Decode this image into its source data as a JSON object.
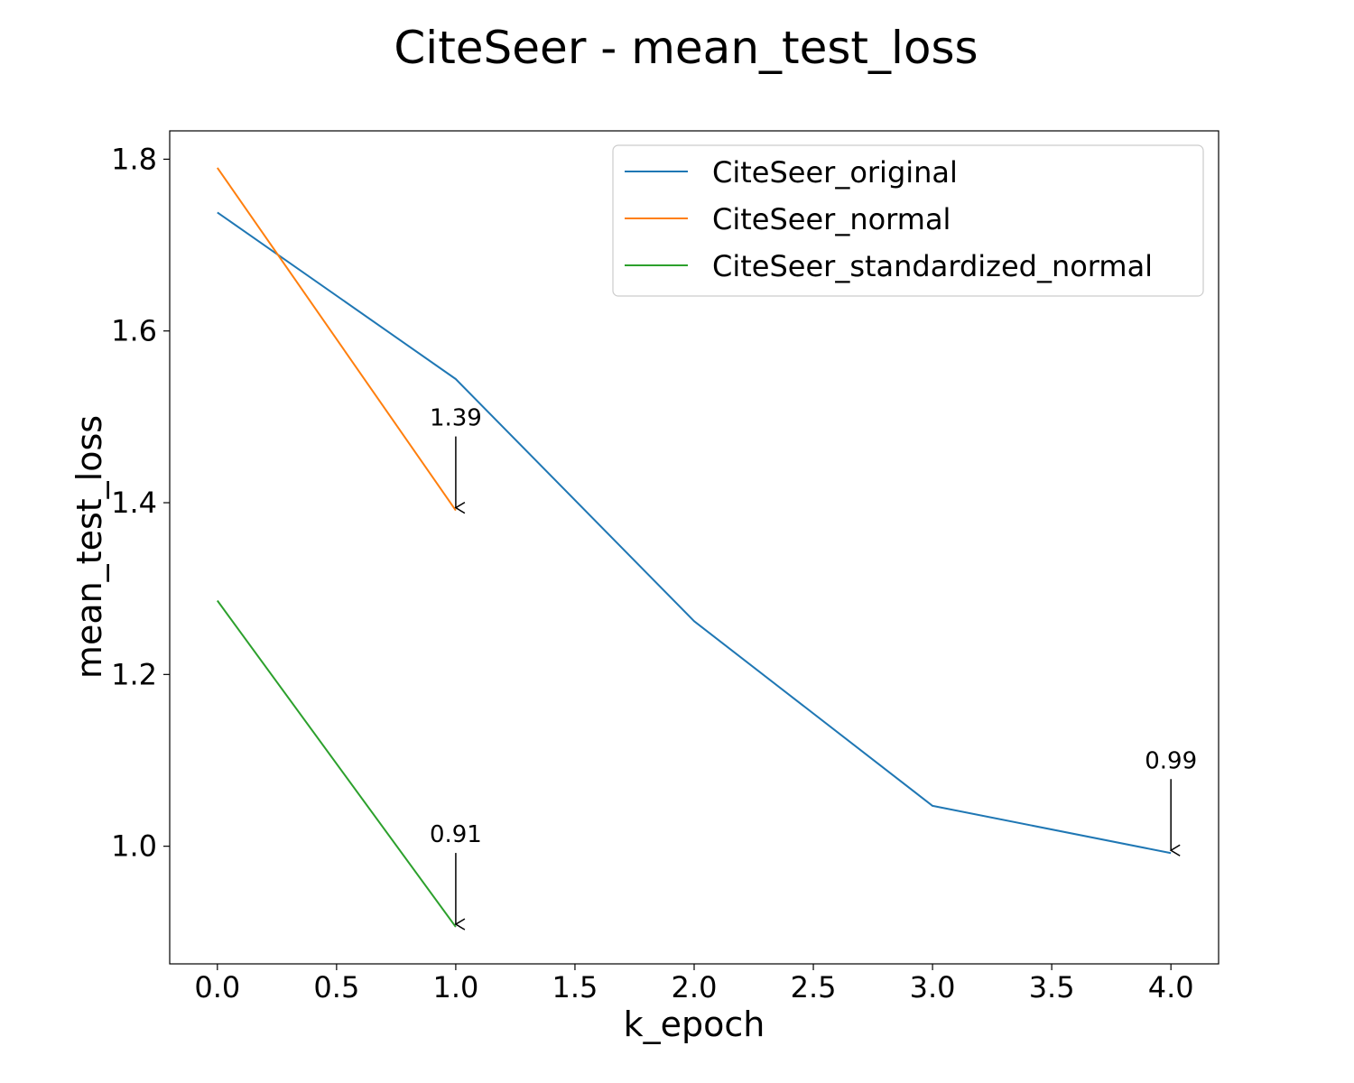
{
  "chart_data": {
    "type": "line",
    "title": "CiteSeer - mean_test_loss",
    "xlabel": "k_epoch",
    "ylabel": "mean_test_loss",
    "xlim": [
      -0.2,
      4.2
    ],
    "ylim": [
      0.863,
      1.833
    ],
    "xticks": [
      0.0,
      0.5,
      1.0,
      1.5,
      2.0,
      2.5,
      3.0,
      3.5,
      4.0
    ],
    "xtick_labels": [
      "0.0",
      "0.5",
      "1.0",
      "1.5",
      "2.0",
      "2.5",
      "3.0",
      "3.5",
      "4.0"
    ],
    "yticks": [
      1.0,
      1.2,
      1.4,
      1.6,
      1.8
    ],
    "ytick_labels": [
      "1.0",
      "1.2",
      "1.4",
      "1.6",
      "1.8"
    ],
    "grid": false,
    "legend_position": "top-right",
    "series": [
      {
        "name": "CiteSeer_original",
        "color": "#1f77b4",
        "x": [
          0,
          1,
          2,
          3,
          4
        ],
        "y": [
          1.738,
          1.544,
          1.262,
          1.047,
          0.992
        ]
      },
      {
        "name": "CiteSeer_normal",
        "color": "#ff7f0e",
        "x": [
          0,
          1
        ],
        "y": [
          1.79,
          1.391
        ]
      },
      {
        "name": "CiteSeer_standardized_normal",
        "color": "#2ca02c",
        "x": [
          0,
          1
        ],
        "y": [
          1.286,
          0.906
        ]
      }
    ],
    "annotations": [
      {
        "text": "1.39",
        "x": 1,
        "y": 1.391
      },
      {
        "text": "0.91",
        "x": 1,
        "y": 0.906
      },
      {
        "text": "0.99",
        "x": 4,
        "y": 0.992
      }
    ]
  }
}
